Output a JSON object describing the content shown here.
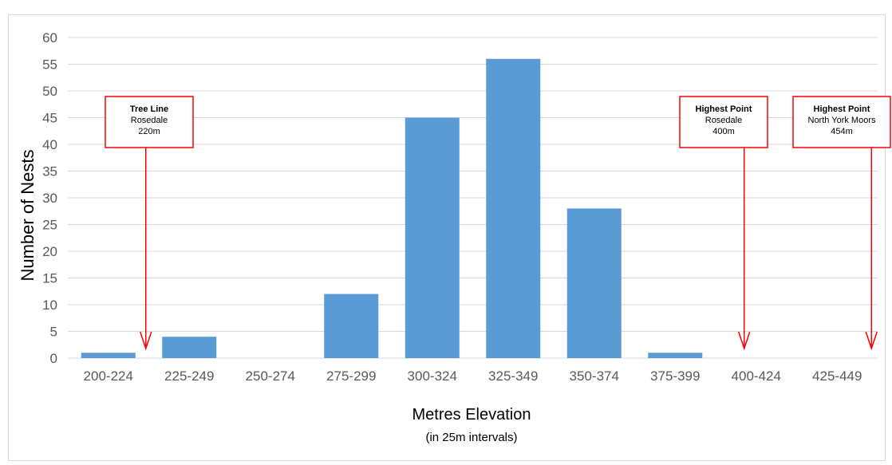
{
  "chart_data": {
    "type": "bar",
    "categories": [
      "200-224",
      "225-249",
      "250-274",
      "275-299",
      "300-324",
      "325-349",
      "350-374",
      "375-399",
      "400-424",
      "425-449"
    ],
    "values": [
      1,
      4,
      0,
      12,
      45,
      56,
      28,
      1,
      0,
      0
    ],
    "ylabel": "Number of Nests",
    "xlabel": "Metres Elevation",
    "xlabel_sub": "(in 25m intervals)",
    "ylim": [
      0,
      60
    ],
    "ytick_step": 5,
    "grid": true,
    "bar_color": "#5b9bd5",
    "annotations": [
      {
        "title": "Tree Line",
        "lines": [
          "Rosedale",
          "220m"
        ],
        "category": "200-224",
        "color": "#ff0000"
      },
      {
        "title": "Highest Point",
        "lines": [
          "Rosedale",
          "400m"
        ],
        "category": "400-424",
        "color": "#ff0000"
      },
      {
        "title": "Highest Point",
        "lines": [
          "North York Moors",
          "454m"
        ],
        "category": "425-449",
        "color": "#ff0000"
      }
    ]
  }
}
